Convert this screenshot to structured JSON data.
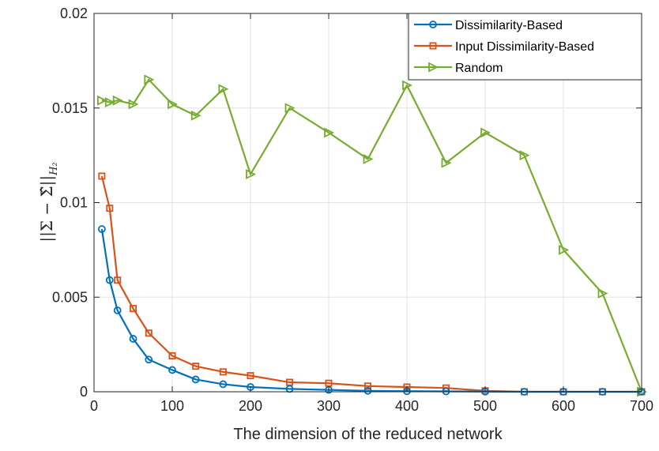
{
  "chart_data": {
    "type": "line",
    "xlabel": "The dimension of the reduced network",
    "ylabel": "||Σ − Σ̂||",
    "ylabel_subscript": "H₂",
    "xlim": [
      0,
      700
    ],
    "ylim": [
      0,
      0.02
    ],
    "xticks": [
      0,
      100,
      200,
      300,
      400,
      500,
      600,
      700
    ],
    "xtick_labels": [
      "0",
      "100",
      "200",
      "300",
      "400",
      "500",
      "600",
      "700"
    ],
    "yticks": [
      0,
      0.005,
      0.01,
      0.015,
      0.02
    ],
    "ytick_labels": [
      "0",
      "0.005",
      "0.01",
      "0.015",
      "0.02"
    ],
    "grid": true,
    "legend_position": "top-right",
    "series": [
      {
        "name": "Dissimilarity-Based",
        "color": "#0072BD",
        "marker": "circle",
        "x": [
          10,
          20,
          30,
          50,
          70,
          100,
          130,
          165,
          200,
          250,
          300,
          350,
          400,
          450,
          500,
          550,
          600,
          650,
          700
        ],
        "y": [
          0.0086,
          0.0059,
          0.0043,
          0.0028,
          0.0017,
          0.00115,
          0.00065,
          0.0004,
          0.00025,
          0.00015,
          0.0001,
          5e-05,
          3e-05,
          2e-05,
          1e-05,
          0.0,
          0.0,
          0.0,
          0.0
        ]
      },
      {
        "name": "Input Dissimilarity-Based",
        "color": "#D95319",
        "marker": "square",
        "x": [
          10,
          20,
          30,
          50,
          70,
          100,
          130,
          165,
          200,
          250,
          300,
          350,
          400,
          450,
          500,
          550,
          600,
          650,
          700
        ],
        "y": [
          0.0114,
          0.0097,
          0.0059,
          0.0044,
          0.0031,
          0.0019,
          0.00135,
          0.00105,
          0.00085,
          0.0005,
          0.00045,
          0.0003,
          0.00025,
          0.0002,
          5e-05,
          0.0,
          0.0,
          0.0,
          0.0
        ]
      },
      {
        "name": "Random",
        "color": "#77AC30",
        "marker": "triangle-right",
        "x": [
          10,
          20,
          30,
          50,
          70,
          100,
          130,
          165,
          200,
          250,
          300,
          350,
          400,
          450,
          500,
          550,
          600,
          650,
          700
        ],
        "y": [
          0.0154,
          0.0153,
          0.0154,
          0.0152,
          0.0165,
          0.0152,
          0.0146,
          0.016,
          0.0115,
          0.015,
          0.0137,
          0.0123,
          0.0162,
          0.0121,
          0.0137,
          0.0125,
          0.0075,
          0.0052,
          0.0
        ]
      }
    ]
  }
}
